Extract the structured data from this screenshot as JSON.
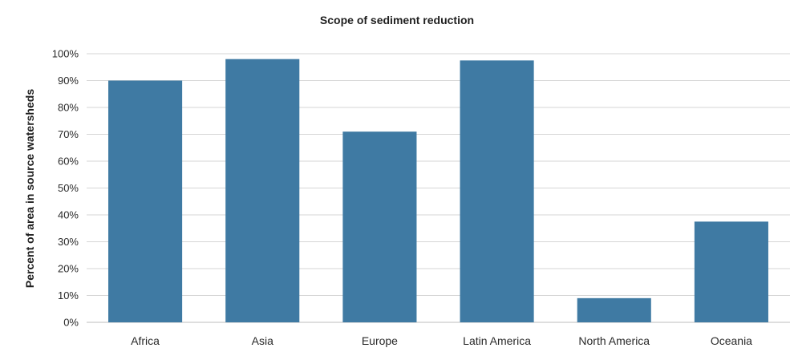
{
  "chart_data": {
    "type": "bar",
    "title": "Scope of sediment reduction",
    "xlabel": "",
    "ylabel": "Percent of area in source watersheds",
    "categories": [
      "Africa",
      "Asia",
      "Europe",
      "Latin America",
      "North America",
      "Oceania"
    ],
    "values": [
      90,
      98,
      71,
      97.5,
      9,
      37.5
    ],
    "ylim": [
      0,
      100
    ],
    "y_ticks": [
      "0%",
      "10%",
      "20%",
      "30%",
      "40%",
      "50%",
      "60%",
      "70%",
      "80%",
      "90%",
      "100%"
    ],
    "grid": true,
    "bar_color": "#3f7aa3"
  }
}
